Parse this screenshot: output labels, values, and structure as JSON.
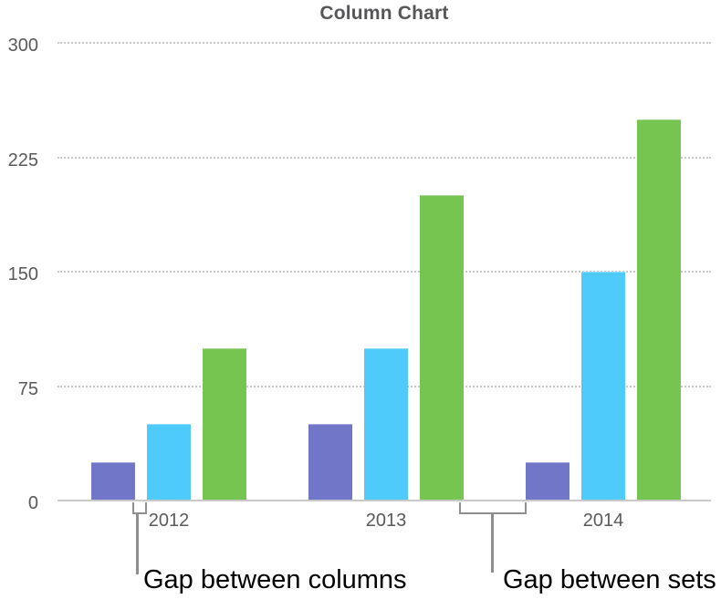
{
  "chart_data": {
    "type": "bar",
    "title": "Column Chart",
    "categories": [
      "2012",
      "2013",
      "2014"
    ],
    "series": [
      {
        "name": "purple",
        "color": "#7176c9",
        "values": [
          25,
          50,
          25
        ]
      },
      {
        "name": "blue",
        "color": "#4ecbfa",
        "values": [
          50,
          100,
          150
        ]
      },
      {
        "name": "green",
        "color": "#75c550",
        "values": [
          100,
          200,
          250
        ]
      }
    ],
    "xlabel": "",
    "ylabel": "",
    "ylim": [
      0,
      300
    ],
    "yticks": [
      0,
      75,
      150,
      225,
      300
    ],
    "grid": "horizontal-dotted",
    "legend": "none"
  },
  "annotations": {
    "gap_between_columns": "Gap between columns",
    "gap_between_sets": "Gap between sets"
  },
  "colors": {
    "title_text": "#565659",
    "axis_text": "#59595b",
    "gridline": "#c7c7c7",
    "baseline": "#c9c9cb",
    "bracket": "#8e8e8e",
    "annotation_text": "#000000"
  }
}
